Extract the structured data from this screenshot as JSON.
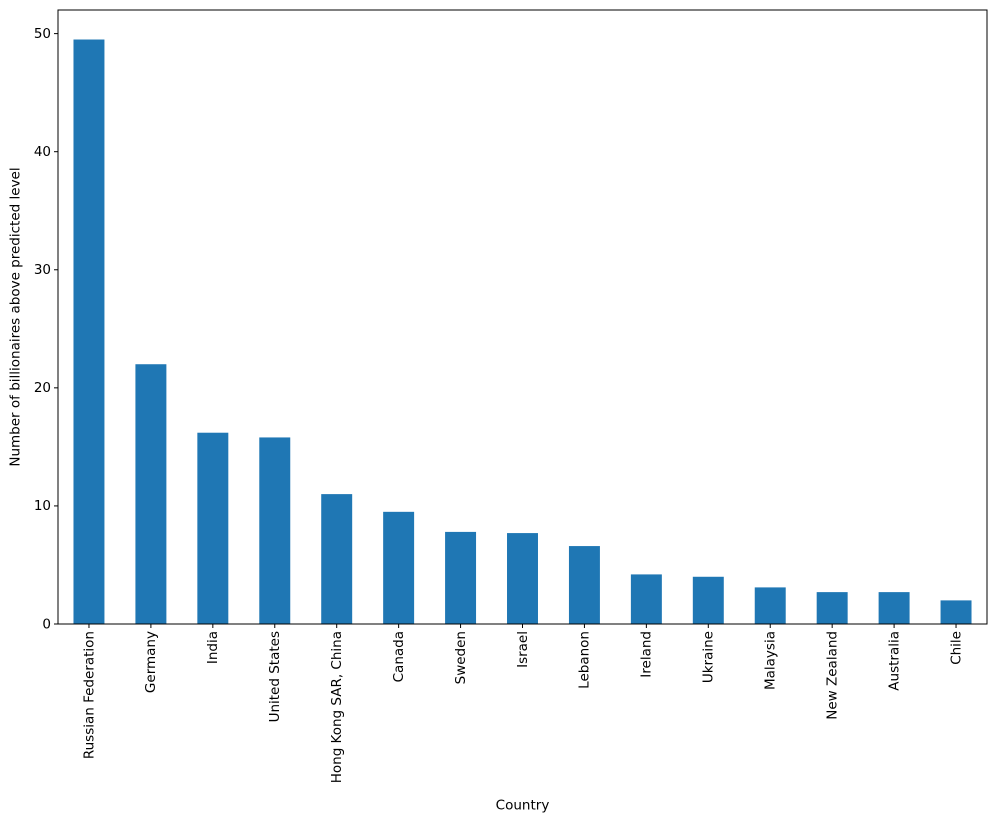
{
  "chart_data": {
    "type": "bar",
    "title": "",
    "xlabel": "Country",
    "ylabel": "Number of billionaires above predicted level",
    "categories": [
      "Russian Federation",
      "Germany",
      "India",
      "United States",
      "Hong Kong SAR, China",
      "Canada",
      "Sweden",
      "Israel",
      "Lebanon",
      "Ireland",
      "Ukraine",
      "Malaysia",
      "New Zealand",
      "Australia",
      "Chile"
    ],
    "values": [
      49.5,
      22.0,
      16.2,
      15.8,
      11.0,
      9.5,
      7.8,
      7.7,
      6.6,
      4.2,
      4.0,
      3.1,
      2.7,
      2.7,
      2.0
    ],
    "yticks": [
      0,
      10,
      20,
      30,
      40,
      50
    ],
    "ylim": [
      0,
      52
    ],
    "grid": false,
    "legend_position": "none",
    "bar_color": "#1f77b4",
    "spine_color": "#000000",
    "text_color": "#000000",
    "background_color": "#ffffff"
  }
}
